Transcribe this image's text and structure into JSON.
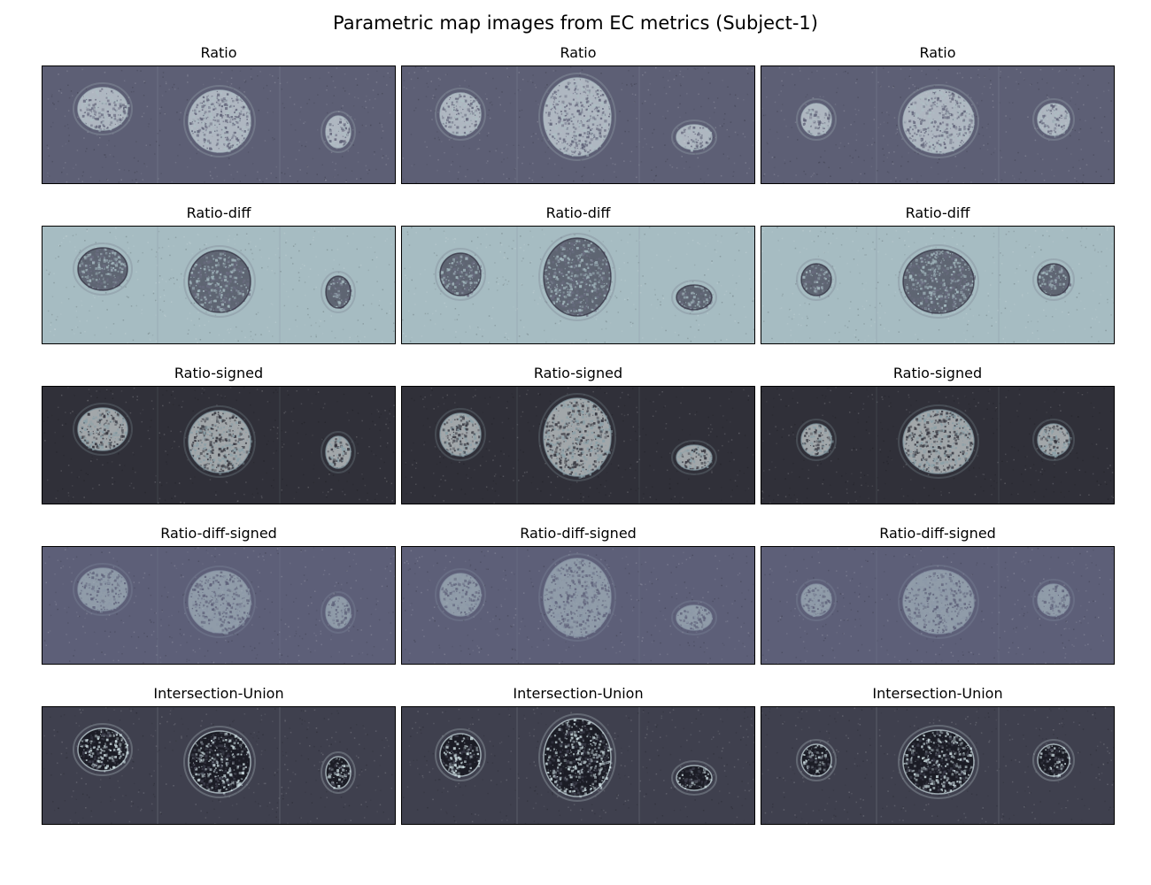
{
  "figure": {
    "title": "Parametric map images from EC metrics (Subject-1)"
  },
  "rows": [
    {
      "label": "Ratio",
      "bg": "#5d5f75",
      "blob": "#e6f2f4",
      "rim": "#aebec4",
      "style": "bright",
      "panels": [
        "Ratio",
        "Ratio",
        "Ratio"
      ]
    },
    {
      "label": "Ratio-diff",
      "bg": "#a6bcc2",
      "blob": "#2e2b3c",
      "rim": "#6a6c80",
      "style": "dark",
      "panels": [
        "Ratio-diff",
        "Ratio-diff",
        "Ratio-diff"
      ]
    },
    {
      "label": "Ratio-signed",
      "bg": "#303039",
      "blob": "#eef6f7",
      "rim": "#8aa0a8",
      "style": "bright",
      "panels": [
        "Ratio-signed",
        "Ratio-signed",
        "Ratio-signed"
      ]
    },
    {
      "label": "Ratio-diff-signed",
      "bg": "#5d5f78",
      "blob": "#b9cdd2",
      "rim": "#8c98a8",
      "style": "soft",
      "panels": [
        "Ratio-diff-signed",
        "Ratio-diff-signed",
        "Ratio-diff-signed"
      ]
    },
    {
      "label": "Intersection-Union",
      "bg": "#3f404e",
      "blob": "#101018",
      "rim": "#cfe0e4",
      "style": "mixed",
      "panels": [
        "Intersection-Union",
        "Intersection-Union",
        "Intersection-Union"
      ]
    }
  ]
}
